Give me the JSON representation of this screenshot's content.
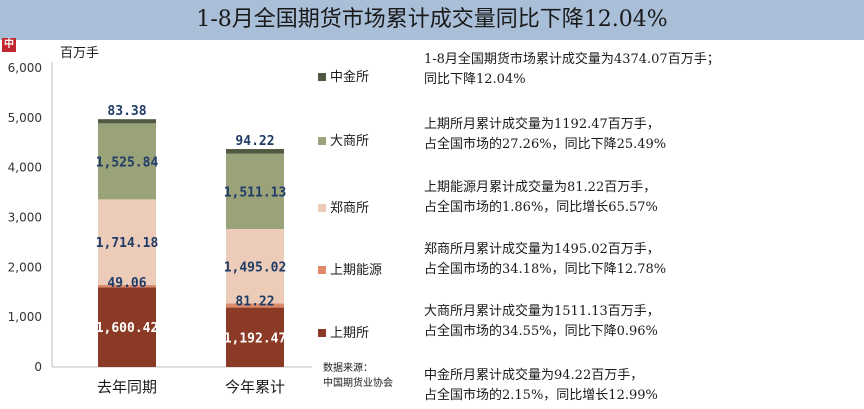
{
  "title": "1-8月全国期货市场累计成交量同比下降12.04%",
  "logo_text": "中",
  "chart_data": {
    "type": "bar",
    "stacked": true,
    "ylabel": "百万手",
    "ylim": [
      0,
      6000
    ],
    "yticks": [
      "0",
      "1,000",
      "2,000",
      "3,000",
      "4,000",
      "5,000",
      "6,000"
    ],
    "categories": [
      "去年同期",
      "今年累计"
    ],
    "series": [
      {
        "name": "上期所",
        "values": [
          1600.42,
          1192.47
        ],
        "labels": [
          "1,600.42",
          "1,192.47"
        ],
        "color": "#8b3a26"
      },
      {
        "name": "上期能源",
        "values": [
          49.06,
          81.22
        ],
        "labels": [
          "49.06",
          "81.22"
        ],
        "color": "#dc8a6a"
      },
      {
        "name": "郑商所",
        "values": [
          1714.18,
          1495.02
        ],
        "labels": [
          "1,714.18",
          "1,495.02"
        ],
        "color": "#ecccb8"
      },
      {
        "name": "大商所",
        "values": [
          1525.84,
          1511.13
        ],
        "labels": [
          "1,525.84",
          "1,511.13"
        ],
        "color": "#9aa27a"
      },
      {
        "name": "中金所",
        "values": [
          83.38,
          94.22
        ],
        "labels": [
          "83.38",
          "94.22"
        ],
        "color": "#4f5a40"
      }
    ],
    "legend_position": "right",
    "grid": false,
    "source_label": "数据来源：",
    "source_name": "中国期货业协会"
  },
  "notes": [
    [
      "1-8月全国期货市场累计成交量为4374.07百万手；",
      "同比下降12.04%"
    ],
    [
      "上期所月累计成交量为1192.47百万手，",
      "占全国市场的27.26%，同比下降25.49%"
    ],
    [
      "上期能源月累计成交量为81.22百万手，",
      "占全国市场的1.86%，同比增长65.57%"
    ],
    [
      "郑商所月累计成交量为1495.02百万手，",
      "占全国市场的34.18%，同比下降12.78%"
    ],
    [
      "大商所月累计成交量为1511.13百万手，",
      "占全国市场的34.55%，同比下降0.96%"
    ],
    [
      "中金所月累计成交量为94.22百万手，",
      "占全国市场的2.15%，同比增长12.99%"
    ]
  ]
}
